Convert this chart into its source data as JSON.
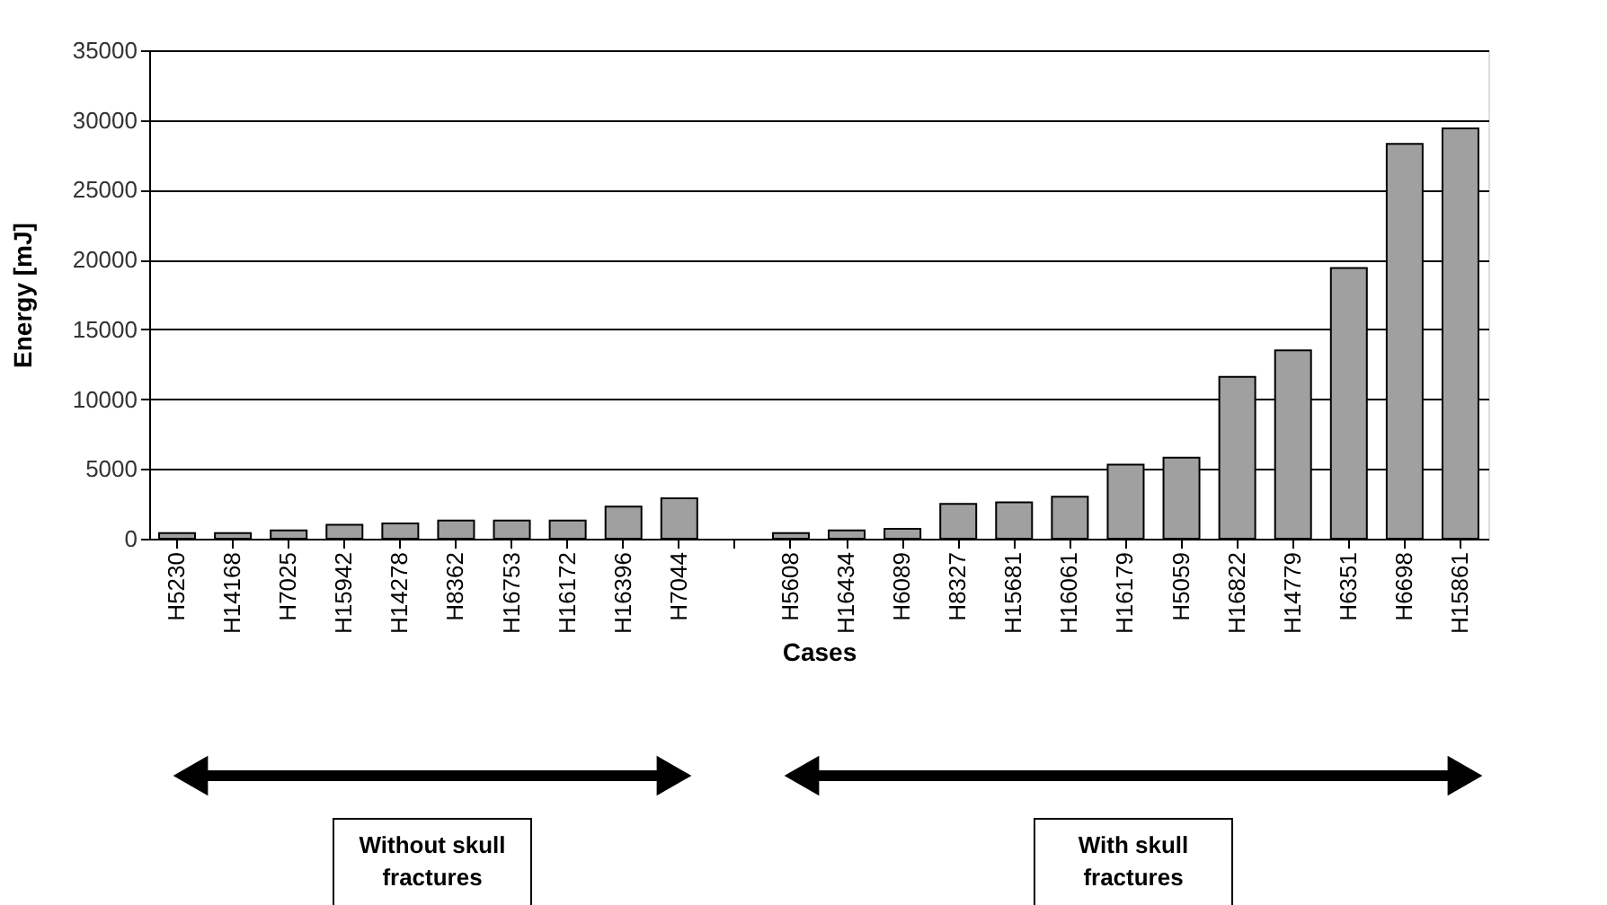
{
  "chart_data": {
    "type": "bar",
    "xlabel": "Cases",
    "ylabel": "Energy [mJ]",
    "categories": [
      "H5230",
      "H14168",
      "H7025",
      "H15942",
      "H14278",
      "H8362",
      "H16753",
      "H16172",
      "H16396",
      "H7044",
      null,
      "H5608",
      "H16434",
      "H6089",
      "H8327",
      "H15681",
      "H16061",
      "H16179",
      "H5059",
      "H16822",
      "H14779",
      "H6351",
      "H6698",
      "H15861"
    ],
    "values": [
      400,
      400,
      600,
      1000,
      1100,
      1300,
      1300,
      1300,
      2300,
      2900,
      null,
      400,
      600,
      700,
      2500,
      2600,
      3000,
      5300,
      5800,
      11600,
      13500,
      19400,
      28300,
      29400
    ],
    "color": "#a0a0a0",
    "ylim": [
      0,
      35000
    ],
    "yticks": [
      0,
      5000,
      10000,
      15000,
      20000,
      25000,
      30000,
      35000
    ],
    "grid": "y",
    "annotations": [
      "Without skull fractures",
      "With skull fractures"
    ]
  }
}
